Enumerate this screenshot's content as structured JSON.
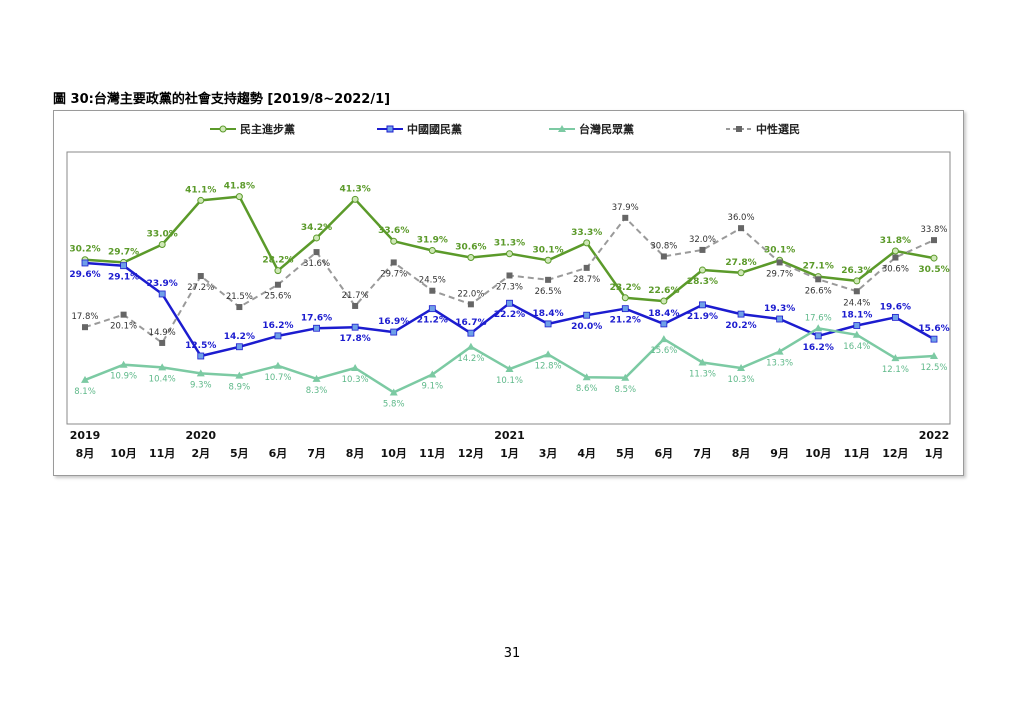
{
  "page": {
    "figure_title": "圖 30:台灣主要政黨的社會支持趨勢  [2019/8~2022/1]",
    "page_number": "31"
  },
  "chart_data": {
    "type": "line",
    "title": "圖 30:台灣主要政黨的社會支持趨勢  [2019/8~2022/1]",
    "categories": [
      "8月",
      "10月",
      "11月",
      "2月",
      "5月",
      "6月",
      "7月",
      "8月",
      "10月",
      "11月",
      "12月",
      "1月",
      "3月",
      "4月",
      "5月",
      "6月",
      "7月",
      "8月",
      "9月",
      "10月",
      "11月",
      "12月",
      "1月"
    ],
    "year_labels": [
      {
        "index": 0,
        "label": "2019"
      },
      {
        "index": 3,
        "label": "2020"
      },
      {
        "index": 11,
        "label": "2021"
      },
      {
        "index": 22,
        "label": "2022"
      }
    ],
    "ylim": [
      0,
      50
    ],
    "legend_position": "top",
    "grid": false,
    "series": [
      {
        "name": "民主進步黨",
        "color": "#5b9a2a",
        "marker_fill": "#cfe8b7",
        "dash": "none",
        "label_color": "#5b9a2a",
        "label_bold": true,
        "values": [
          30.2,
          29.7,
          33.0,
          41.1,
          41.8,
          28.2,
          34.2,
          41.3,
          33.6,
          31.9,
          30.6,
          31.3,
          30.1,
          33.3,
          23.2,
          22.6,
          28.3,
          27.8,
          30.1,
          27.1,
          26.3,
          31.8,
          30.5
        ],
        "value_labels": [
          "30.2%",
          "29.7%",
          "33.0%",
          "41.1%",
          "41.8%",
          "28.2%",
          "34.2%",
          "41.3%",
          "33.6%",
          "31.9%",
          "30.6%",
          "31.3%",
          "30.1%",
          "33.3%",
          "23.2%",
          "22.6%",
          "28.3%",
          "27.8%",
          "30.1%",
          "27.1%",
          "26.3%",
          "31.8%",
          "30.5%"
        ]
      },
      {
        "name": "中國國民黨",
        "color": "#1c1ccf",
        "marker_fill": "#6fa0e8",
        "dash": "none",
        "label_color": "#1c1ccf",
        "label_bold": true,
        "values": [
          29.6,
          29.1,
          23.9,
          12.5,
          14.2,
          16.2,
          17.6,
          17.8,
          16.9,
          21.2,
          16.7,
          22.2,
          18.4,
          20.0,
          21.2,
          18.4,
          21.9,
          20.2,
          19.3,
          16.2,
          18.1,
          19.6,
          15.6
        ],
        "value_labels": [
          "29.6%",
          "29.1%",
          "23.9%",
          "12.5%",
          "14.2%",
          "16.2%",
          "17.6%",
          "17.8%",
          "16.9%",
          "21.2%",
          "16.7%",
          "22.2%",
          "18.4%",
          "20.0%",
          "21.2%",
          "18.4%",
          "21.9%",
          "20.2%",
          "19.3%",
          "16.2%",
          "18.1%",
          "19.6%",
          "15.6%"
        ]
      },
      {
        "name": "台灣民眾黨",
        "color": "#7ccaa3",
        "marker_fill": "#7ccaa3",
        "dash": "none",
        "label_color": "#5fb98a",
        "label_bold": false,
        "values": [
          8.1,
          10.9,
          10.4,
          9.3,
          8.9,
          10.7,
          8.3,
          10.3,
          5.8,
          9.1,
          14.2,
          10.1,
          12.8,
          8.6,
          8.5,
          15.6,
          11.3,
          10.3,
          13.3,
          17.6,
          16.4,
          12.1,
          12.5
        ],
        "value_labels": [
          "8.1%",
          "10.9%",
          "10.4%",
          "9.3%",
          "8.9%",
          "10.7%",
          "8.3%",
          "10.3%",
          "5.8%",
          "9.1%",
          "14.2%",
          "10.1%",
          "12.8%",
          "8.6%",
          "8.5%",
          "15.6%",
          "11.3%",
          "10.3%",
          "13.3%",
          "17.6%",
          "16.4%",
          "12.1%",
          "12.5%"
        ]
      },
      {
        "name": "中性選民",
        "color": "#9a9a9a",
        "marker_fill": "#666666",
        "dash": "6,4",
        "label_color": "#333333",
        "label_bold": false,
        "values": [
          17.8,
          20.1,
          14.9,
          27.2,
          21.5,
          25.6,
          31.6,
          21.7,
          29.7,
          24.5,
          22.0,
          27.3,
          26.5,
          28.7,
          37.9,
          30.8,
          32.0,
          36.0,
          29.7,
          26.6,
          24.4,
          30.6,
          33.8
        ],
        "value_labels": [
          "17.8%",
          "20.1%",
          "14.9%",
          "27.2%",
          "21.5%",
          "25.6%",
          "31.6%",
          "21.7%",
          "29.7%",
          "24.5%",
          "22.0%",
          "27.3%",
          "26.5%",
          "28.7%",
          "37.9%",
          "30.8%",
          "32.0%",
          "36.0%",
          "29.7%",
          "26.6%",
          "24.4%",
          "30.6%",
          "33.8%"
        ]
      }
    ]
  }
}
